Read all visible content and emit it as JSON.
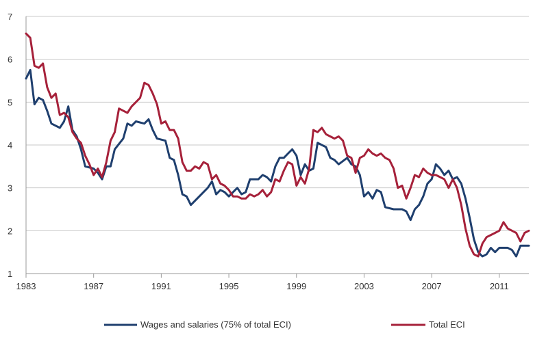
{
  "chart_data": {
    "type": "line",
    "title": "",
    "xlabel": "",
    "ylabel": "",
    "xlim": [
      1983,
      2012.75
    ],
    "ylim": [
      1,
      7
    ],
    "grid": true,
    "legend_position": "bottom",
    "x_ticks": [
      "1983",
      "1987",
      "1991",
      "1995",
      "1999",
      "2003",
      "2007",
      "2011"
    ],
    "x_tick_values": [
      1983,
      1987,
      1991,
      1995,
      1999,
      2003,
      2007,
      2011
    ],
    "y_ticks": [
      "1",
      "2",
      "3",
      "4",
      "5",
      "6",
      "7"
    ],
    "y_tick_values": [
      1,
      2,
      3,
      4,
      5,
      6,
      7
    ],
    "series": [
      {
        "name": "Wages and salaries (75% of total ECI)",
        "color": "#1f3f6e",
        "points": [
          [
            1983.0,
            5.55
          ],
          [
            1983.25,
            5.75
          ],
          [
            1983.5,
            4.95
          ],
          [
            1983.75,
            5.1
          ],
          [
            1984.0,
            5.05
          ],
          [
            1984.25,
            4.8
          ],
          [
            1984.5,
            4.5
          ],
          [
            1985.0,
            4.4
          ],
          [
            1985.25,
            4.55
          ],
          [
            1985.5,
            4.9
          ],
          [
            1985.75,
            4.35
          ],
          [
            1986.0,
            4.2
          ],
          [
            1986.25,
            3.9
          ],
          [
            1986.5,
            3.5
          ],
          [
            1987.0,
            3.45
          ],
          [
            1987.25,
            3.35
          ],
          [
            1987.5,
            3.2
          ],
          [
            1987.75,
            3.5
          ],
          [
            1988.0,
            3.5
          ],
          [
            1988.25,
            3.9
          ],
          [
            1988.75,
            4.15
          ],
          [
            1989.0,
            4.5
          ],
          [
            1989.25,
            4.45
          ],
          [
            1989.5,
            4.55
          ],
          [
            1990.0,
            4.5
          ],
          [
            1990.25,
            4.6
          ],
          [
            1990.5,
            4.35
          ],
          [
            1990.75,
            4.15
          ],
          [
            1991.25,
            4.1
          ],
          [
            1991.5,
            3.7
          ],
          [
            1991.75,
            3.65
          ],
          [
            1992.0,
            3.3
          ],
          [
            1992.25,
            2.85
          ],
          [
            1992.5,
            2.8
          ],
          [
            1992.75,
            2.6
          ],
          [
            1993.25,
            2.8
          ],
          [
            1993.75,
            3.0
          ],
          [
            1994.0,
            3.15
          ],
          [
            1994.25,
            2.85
          ],
          [
            1994.5,
            2.95
          ],
          [
            1994.75,
            2.9
          ],
          [
            1995.0,
            2.8
          ],
          [
            1995.25,
            2.9
          ],
          [
            1995.5,
            3.0
          ],
          [
            1995.75,
            2.85
          ],
          [
            1996.0,
            2.9
          ],
          [
            1996.25,
            3.2
          ],
          [
            1996.75,
            3.2
          ],
          [
            1997.0,
            3.3
          ],
          [
            1997.25,
            3.25
          ],
          [
            1997.5,
            3.15
          ],
          [
            1997.75,
            3.5
          ],
          [
            1998.0,
            3.7
          ],
          [
            1998.25,
            3.7
          ],
          [
            1998.5,
            3.8
          ],
          [
            1998.75,
            3.9
          ],
          [
            1999.0,
            3.75
          ],
          [
            1999.25,
            3.3
          ],
          [
            1999.5,
            3.55
          ],
          [
            1999.75,
            3.4
          ],
          [
            2000.0,
            3.45
          ],
          [
            2000.25,
            4.05
          ],
          [
            2000.5,
            4.0
          ],
          [
            2000.75,
            3.95
          ],
          [
            2001.0,
            3.7
          ],
          [
            2001.25,
            3.65
          ],
          [
            2001.5,
            3.55
          ],
          [
            2002.0,
            3.7
          ],
          [
            2002.25,
            3.55
          ],
          [
            2002.5,
            3.5
          ],
          [
            2002.75,
            3.3
          ],
          [
            2003.0,
            2.8
          ],
          [
            2003.25,
            2.9
          ],
          [
            2003.5,
            2.75
          ],
          [
            2003.75,
            2.95
          ],
          [
            2004.0,
            2.9
          ],
          [
            2004.25,
            2.55
          ],
          [
            2004.75,
            2.5
          ],
          [
            2005.25,
            2.5
          ],
          [
            2005.5,
            2.45
          ],
          [
            2005.75,
            2.25
          ],
          [
            2006.0,
            2.5
          ],
          [
            2006.25,
            2.6
          ],
          [
            2006.5,
            2.8
          ],
          [
            2006.75,
            3.1
          ],
          [
            2007.0,
            3.2
          ],
          [
            2007.25,
            3.55
          ],
          [
            2007.5,
            3.45
          ],
          [
            2007.75,
            3.3
          ],
          [
            2008.0,
            3.4
          ],
          [
            2008.25,
            3.2
          ],
          [
            2008.5,
            3.25
          ],
          [
            2008.75,
            3.1
          ],
          [
            2009.0,
            2.75
          ],
          [
            2009.25,
            2.3
          ],
          [
            2009.5,
            1.8
          ],
          [
            2009.75,
            1.5
          ],
          [
            2010.0,
            1.4
          ],
          [
            2010.25,
            1.45
          ],
          [
            2010.5,
            1.6
          ],
          [
            2010.75,
            1.5
          ],
          [
            2011.0,
            1.6
          ],
          [
            2011.5,
            1.6
          ],
          [
            2011.75,
            1.55
          ],
          [
            2012.0,
            1.4
          ],
          [
            2012.25,
            1.65
          ],
          [
            2012.75,
            1.65
          ]
        ]
      },
      {
        "name": "Total ECI",
        "color": "#a6213a",
        "points": [
          [
            1983.0,
            6.6
          ],
          [
            1983.25,
            6.5
          ],
          [
            1983.5,
            5.85
          ],
          [
            1983.75,
            5.8
          ],
          [
            1984.0,
            5.9
          ],
          [
            1984.25,
            5.35
          ],
          [
            1984.5,
            5.1
          ],
          [
            1984.75,
            5.2
          ],
          [
            1985.0,
            4.7
          ],
          [
            1985.25,
            4.75
          ],
          [
            1985.5,
            4.65
          ],
          [
            1985.75,
            4.3
          ],
          [
            1986.0,
            4.15
          ],
          [
            1986.25,
            4.05
          ],
          [
            1986.5,
            3.75
          ],
          [
            1986.75,
            3.55
          ],
          [
            1987.0,
            3.3
          ],
          [
            1987.25,
            3.45
          ],
          [
            1987.5,
            3.25
          ],
          [
            1987.75,
            3.6
          ],
          [
            1988.0,
            4.1
          ],
          [
            1988.25,
            4.3
          ],
          [
            1988.5,
            4.85
          ],
          [
            1988.75,
            4.8
          ],
          [
            1989.0,
            4.75
          ],
          [
            1989.25,
            4.9
          ],
          [
            1989.5,
            5.0
          ],
          [
            1989.75,
            5.1
          ],
          [
            1990.0,
            5.45
          ],
          [
            1990.25,
            5.4
          ],
          [
            1990.5,
            5.2
          ],
          [
            1990.75,
            4.95
          ],
          [
            1991.0,
            4.5
          ],
          [
            1991.25,
            4.55
          ],
          [
            1991.5,
            4.35
          ],
          [
            1991.75,
            4.35
          ],
          [
            1992.0,
            4.15
          ],
          [
            1992.25,
            3.6
          ],
          [
            1992.5,
            3.4
          ],
          [
            1992.75,
            3.4
          ],
          [
            1993.0,
            3.5
          ],
          [
            1993.25,
            3.45
          ],
          [
            1993.5,
            3.6
          ],
          [
            1993.75,
            3.55
          ],
          [
            1994.0,
            3.2
          ],
          [
            1994.25,
            3.3
          ],
          [
            1994.5,
            3.1
          ],
          [
            1994.75,
            3.05
          ],
          [
            1995.0,
            2.95
          ],
          [
            1995.25,
            2.8
          ],
          [
            1995.5,
            2.8
          ],
          [
            1995.75,
            2.75
          ],
          [
            1996.0,
            2.75
          ],
          [
            1996.25,
            2.85
          ],
          [
            1996.5,
            2.8
          ],
          [
            1996.75,
            2.85
          ],
          [
            1997.0,
            2.95
          ],
          [
            1997.25,
            2.8
          ],
          [
            1997.5,
            2.9
          ],
          [
            1997.75,
            3.2
          ],
          [
            1998.0,
            3.15
          ],
          [
            1998.25,
            3.4
          ],
          [
            1998.5,
            3.6
          ],
          [
            1998.75,
            3.55
          ],
          [
            1999.0,
            3.05
          ],
          [
            1999.25,
            3.25
          ],
          [
            1999.5,
            3.1
          ],
          [
            1999.75,
            3.45
          ],
          [
            2000.0,
            4.35
          ],
          [
            2000.25,
            4.3
          ],
          [
            2000.5,
            4.4
          ],
          [
            2000.75,
            4.25
          ],
          [
            2001.0,
            4.2
          ],
          [
            2001.25,
            4.15
          ],
          [
            2001.5,
            4.2
          ],
          [
            2001.75,
            4.1
          ],
          [
            2002.0,
            3.75
          ],
          [
            2002.25,
            3.7
          ],
          [
            2002.5,
            3.35
          ],
          [
            2002.75,
            3.7
          ],
          [
            2003.0,
            3.75
          ],
          [
            2003.25,
            3.9
          ],
          [
            2003.5,
            3.8
          ],
          [
            2003.75,
            3.75
          ],
          [
            2004.0,
            3.8
          ],
          [
            2004.25,
            3.7
          ],
          [
            2004.5,
            3.65
          ],
          [
            2004.75,
            3.45
          ],
          [
            2005.0,
            3.0
          ],
          [
            2005.25,
            3.05
          ],
          [
            2005.5,
            2.75
          ],
          [
            2005.75,
            3.0
          ],
          [
            2006.0,
            3.3
          ],
          [
            2006.25,
            3.25
          ],
          [
            2006.5,
            3.45
          ],
          [
            2006.75,
            3.35
          ],
          [
            2007.0,
            3.3
          ],
          [
            2007.25,
            3.3
          ],
          [
            2007.5,
            3.25
          ],
          [
            2007.75,
            3.2
          ],
          [
            2008.0,
            3.0
          ],
          [
            2008.25,
            3.2
          ],
          [
            2008.5,
            3.0
          ],
          [
            2008.75,
            2.6
          ],
          [
            2009.0,
            2.05
          ],
          [
            2009.25,
            1.65
          ],
          [
            2009.5,
            1.45
          ],
          [
            2009.75,
            1.4
          ],
          [
            2010.0,
            1.7
          ],
          [
            2010.25,
            1.85
          ],
          [
            2010.5,
            1.9
          ],
          [
            2010.75,
            1.95
          ],
          [
            2011.0,
            2.0
          ],
          [
            2011.25,
            2.2
          ],
          [
            2011.5,
            2.05
          ],
          [
            2011.75,
            2.0
          ],
          [
            2012.0,
            1.95
          ],
          [
            2012.25,
            1.75
          ],
          [
            2012.5,
            1.95
          ],
          [
            2012.75,
            2.0
          ]
        ]
      }
    ]
  }
}
